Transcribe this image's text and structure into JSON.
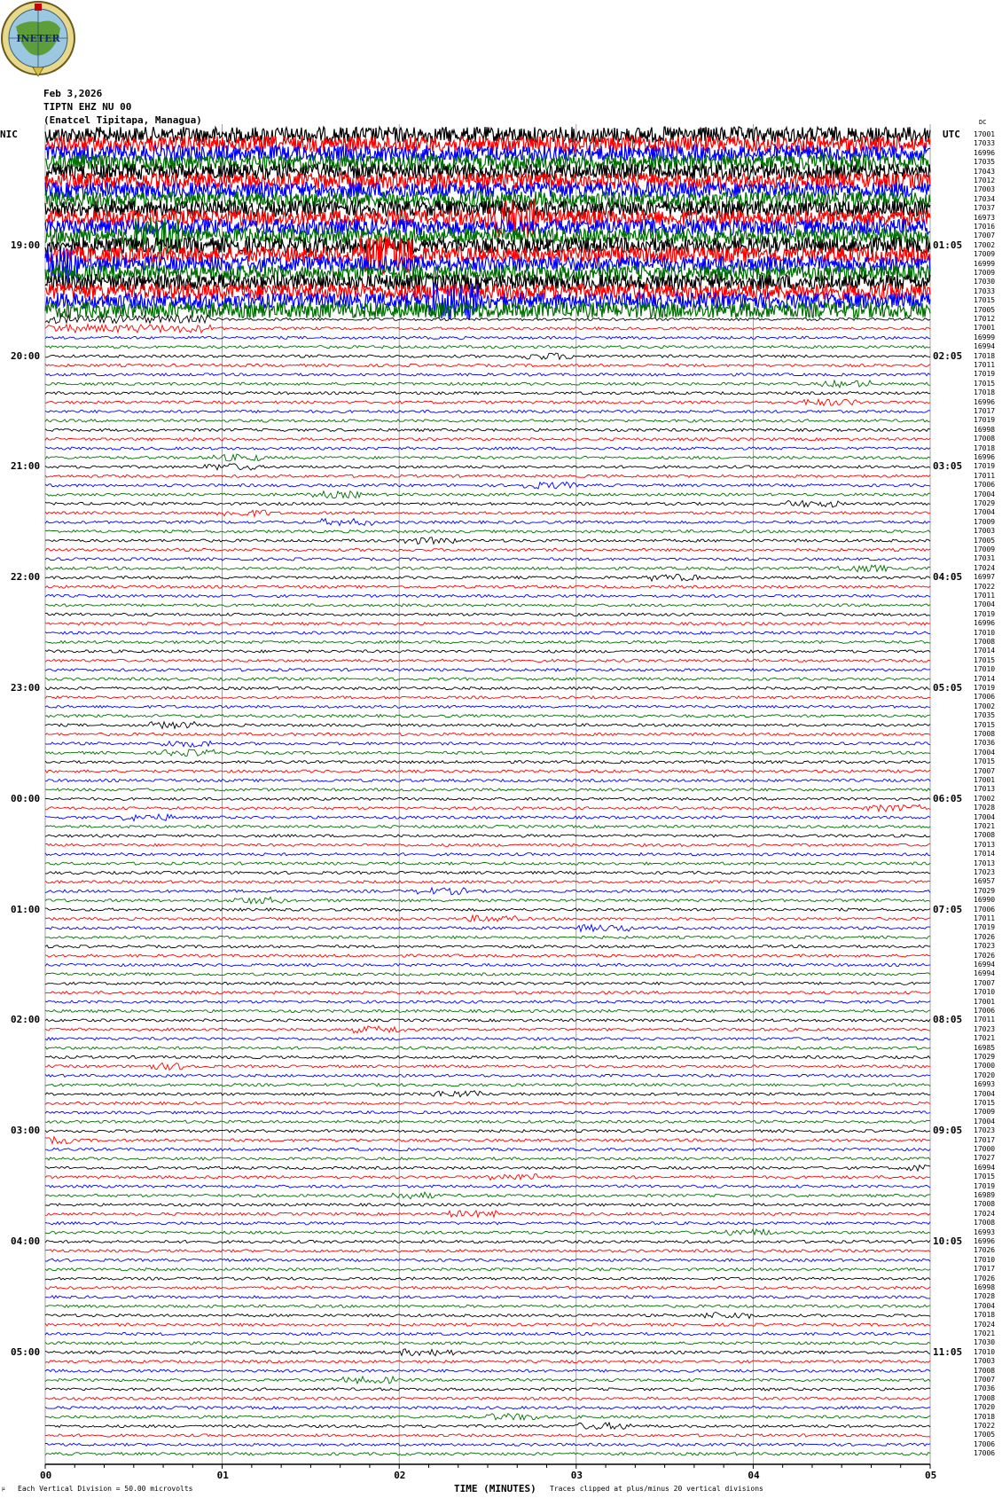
{
  "header": {
    "date": "Feb 3,2026",
    "station": "TIPTN EHZ NU 00",
    "location": "(Enatcel Tipitapa, Managua)",
    "logo_text": "INETER"
  },
  "left_label": "NIC",
  "right_label": "UTC",
  "dc_label": "DC",
  "colors": {
    "trace_cycle": [
      "#000000",
      "#ff0000",
      "#0000ff",
      "#007000"
    ],
    "grid": "#888888"
  },
  "chart_data": {
    "type": "line",
    "title": "",
    "xlabel": "TIME (MINUTES)",
    "x_ticks": [
      "00",
      "01",
      "02",
      "03",
      "04",
      "05"
    ],
    "xlim": [
      0,
      5
    ],
    "rows_per_hour": 12,
    "row_minutes": 5,
    "left_time_labels": [
      "19:00",
      "20:00",
      "21:00",
      "22:00",
      "23:00",
      "00:00",
      "01:00",
      "02:00",
      "03:00",
      "04:00",
      "05:00"
    ],
    "right_time_labels": [
      "01:05",
      "02:05",
      "03:05",
      "04:05",
      "05:05",
      "06:05",
      "07:05",
      "08:05",
      "09:05",
      "10:05",
      "11:05"
    ],
    "row_dc_offsets": [
      17001,
      17033,
      16996,
      17035,
      17043,
      17012,
      17003,
      17034,
      17037,
      16973,
      17016,
      17007,
      17002,
      17009,
      16999,
      17009,
      17030,
      17033,
      17015,
      17005,
      17012,
      17001,
      16999,
      16994,
      17018,
      17011,
      17019,
      17015,
      17018,
      16996,
      17017,
      17019,
      16998,
      17008,
      17018,
      16996,
      17019,
      17011,
      17006,
      17004,
      17029,
      17004,
      17009,
      17003,
      17005,
      17009,
      17031,
      17024,
      16997,
      17022,
      17011,
      17004,
      17019,
      16996,
      17010,
      17008,
      17014,
      17015,
      17010,
      17014,
      17019,
      17006,
      17002,
      17035,
      17015,
      17008,
      17036,
      17004,
      17015,
      17007,
      17001,
      17013,
      17002,
      17028,
      17004,
      17021,
      17008,
      17013,
      17014,
      17013,
      17023,
      16957,
      17029,
      16990,
      17006,
      17011,
      17019,
      17026,
      17023,
      17026,
      16994,
      16994,
      17007,
      17010,
      17001,
      17006,
      17011,
      17023,
      17021,
      16985,
      17029,
      17000,
      17020,
      16993,
      17004,
      17015,
      17009,
      17004,
      17023,
      17017,
      17000,
      17027,
      16994,
      17015,
      17019,
      16989,
      17008,
      17024,
      17008,
      16993,
      16996,
      17026,
      17010,
      17017,
      17026,
      16998,
      17028,
      17004,
      17018,
      17024,
      17021,
      17030,
      17010,
      17003,
      17008,
      17007,
      17036,
      17008,
      17020,
      17018,
      17022,
      17005,
      17006,
      17006
    ],
    "high_noise_rows": 20
  },
  "footer": {
    "scale": "Each Vertical Division =    50.00 microvolts",
    "clip": "Traces clipped at plus/minus 20 vertical divisions",
    "corner_mark": "µ"
  }
}
